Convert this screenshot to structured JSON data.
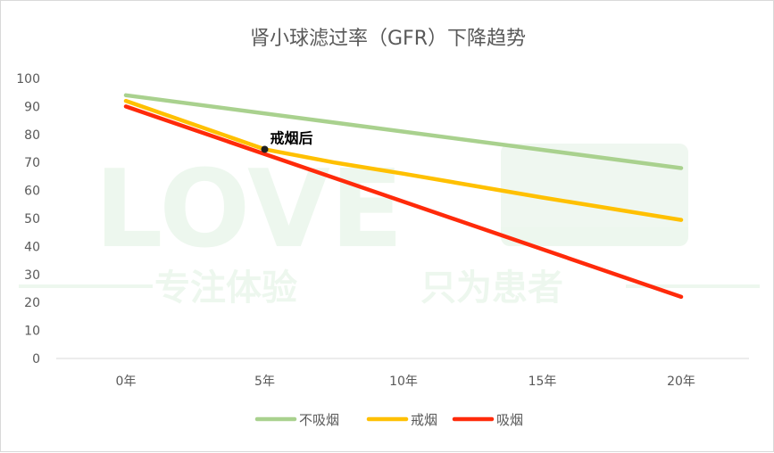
{
  "chart_data": {
    "type": "line",
    "title": "肾小球滤过率（GFR）下降趋势",
    "xlabel": "",
    "ylabel": "",
    "categories": [
      "0年",
      "5年",
      "10年",
      "15年",
      "20年"
    ],
    "ylim": [
      0,
      100
    ],
    "yticks": [
      0,
      10,
      20,
      30,
      40,
      50,
      60,
      70,
      80,
      90,
      100
    ],
    "grid": false,
    "legend_position": "bottom",
    "series": [
      {
        "name": "不吸烟",
        "color": "#a9d18e",
        "x": [
          0,
          20
        ],
        "values": [
          94,
          68
        ]
      },
      {
        "name": "戒烟",
        "color": "#ffc000",
        "x": [
          0,
          5,
          7.5,
          10,
          15,
          20
        ],
        "values": [
          92,
          74.7,
          70,
          66,
          57.5,
          49.5
        ]
      },
      {
        "name": "吸烟",
        "color": "#ff2a0a",
        "x": [
          0,
          20
        ],
        "values": [
          90,
          22
        ]
      }
    ],
    "annotations": [
      {
        "label": "戒烟后",
        "x": 5,
        "y": 74.7
      }
    ]
  },
  "watermark": {
    "big_text": "LOVE",
    "sub_left": "专注体验",
    "sub_right": "只为患者"
  }
}
